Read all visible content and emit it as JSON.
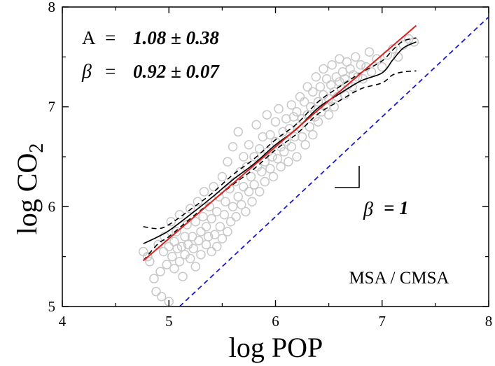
{
  "chart_data": {
    "type": "scatter",
    "title": "",
    "xlabel": "log POP",
    "ylabel_main": "log CO",
    "ylabel_sub": "2",
    "xlim": [
      4,
      8
    ],
    "ylim": [
      5,
      8
    ],
    "xticks": [
      4,
      5,
      6,
      7,
      8
    ],
    "yticks": [
      5,
      6,
      7,
      8
    ],
    "xtick_labels": [
      "4",
      "5",
      "6",
      "7",
      "8"
    ],
    "ytick_labels": [
      "5",
      "6",
      "7",
      "8"
    ],
    "annotations": {
      "a_label": "A",
      "equals": "=",
      "a_value": "1.08 ± 0.38",
      "beta_symbol": "β",
      "beta_value": "0.92 ± 0.07",
      "slope_symbol": "β",
      "slope_value": "= 1",
      "region_label": "MSA / CMSA"
    },
    "colors": {
      "points": "#c8c8c8",
      "fit": "#dd2222",
      "smooth": "#000000",
      "reference": "#1a1acc"
    },
    "fit_line": {
      "intercept": 1.08,
      "slope": 0.92,
      "x_range": [
        4.76,
        7.32
      ]
    },
    "reference_line": {
      "intercept": -0.1,
      "slope": 1.0,
      "x_range": [
        5.1,
        8.0
      ]
    },
    "smooth_mean": {
      "x": [
        4.76,
        4.9,
        5.0,
        5.2,
        5.4,
        5.6,
        5.8,
        6.0,
        6.2,
        6.4,
        6.6,
        6.8,
        7.0,
        7.1,
        7.2,
        7.32
      ],
      "y": [
        5.63,
        5.7,
        5.76,
        5.92,
        6.09,
        6.27,
        6.43,
        6.62,
        6.78,
        6.99,
        7.13,
        7.26,
        7.34,
        7.47,
        7.59,
        7.65
      ]
    },
    "smooth_upper": {
      "x": [
        4.76,
        4.9,
        5.0,
        5.2,
        5.4,
        5.6,
        5.8,
        6.0,
        6.2,
        6.4,
        6.6,
        6.8,
        7.0,
        7.1,
        7.2,
        7.32
      ],
      "y": [
        5.8,
        5.78,
        5.82,
        5.97,
        6.13,
        6.32,
        6.48,
        6.67,
        6.83,
        7.05,
        7.2,
        7.34,
        7.46,
        7.57,
        7.66,
        7.69
      ]
    },
    "smooth_lower": {
      "x": [
        4.76,
        4.9,
        5.0,
        5.2,
        5.4,
        5.6,
        5.8,
        6.0,
        6.2,
        6.4,
        6.6,
        6.8,
        7.0,
        7.1,
        7.2,
        7.32
      ],
      "y": [
        5.46,
        5.63,
        5.7,
        5.88,
        6.05,
        6.22,
        6.38,
        6.57,
        6.73,
        6.93,
        7.06,
        7.18,
        7.24,
        7.32,
        7.35,
        7.36
      ]
    },
    "points": [
      [
        4.76,
        5.55
      ],
      [
        4.8,
        5.5
      ],
      [
        4.82,
        5.45
      ],
      [
        4.86,
        5.28
      ],
      [
        4.88,
        5.15
      ],
      [
        4.9,
        5.62
      ],
      [
        4.92,
        5.35
      ],
      [
        4.93,
        5.1
      ],
      [
        4.95,
        5.55
      ],
      [
        4.96,
        5.7
      ],
      [
        4.98,
        5.42
      ],
      [
        5.0,
        5.6
      ],
      [
        5.0,
        5.05
      ],
      [
        5.02,
        5.85
      ],
      [
        5.03,
        5.5
      ],
      [
        5.05,
        5.65
      ],
      [
        5.05,
        5.38
      ],
      [
        5.07,
        5.75
      ],
      [
        5.08,
        5.58
      ],
      [
        5.1,
        5.45
      ],
      [
        5.1,
        5.92
      ],
      [
        5.12,
        5.6
      ],
      [
        5.13,
        5.3
      ],
      [
        5.15,
        5.7
      ],
      [
        5.15,
        5.52
      ],
      [
        5.17,
        5.82
      ],
      [
        5.18,
        5.62
      ],
      [
        5.2,
        5.48
      ],
      [
        5.2,
        5.98
      ],
      [
        5.22,
        5.7
      ],
      [
        5.23,
        5.58
      ],
      [
        5.25,
        5.85
      ],
      [
        5.25,
        5.4
      ],
      [
        5.27,
        6.05
      ],
      [
        5.28,
        5.66
      ],
      [
        5.3,
        5.75
      ],
      [
        5.3,
        5.52
      ],
      [
        5.32,
        5.9
      ],
      [
        5.33,
        6.15
      ],
      [
        5.35,
        5.62
      ],
      [
        5.35,
        5.8
      ],
      [
        5.37,
        5.7
      ],
      [
        5.38,
        6.0
      ],
      [
        5.4,
        5.55
      ],
      [
        5.4,
        5.88
      ],
      [
        5.42,
        6.2
      ],
      [
        5.43,
        5.72
      ],
      [
        5.45,
        5.95
      ],
      [
        5.45,
        5.6
      ],
      [
        5.47,
        6.1
      ],
      [
        5.48,
        5.8
      ],
      [
        5.5,
        5.68
      ],
      [
        5.5,
        6.3
      ],
      [
        5.52,
        5.92
      ],
      [
        5.53,
        6.05
      ],
      [
        5.55,
        5.75
      ],
      [
        5.55,
        6.45
      ],
      [
        5.57,
        6.18
      ],
      [
        5.58,
        5.85
      ],
      [
        5.6,
        6.0
      ],
      [
        5.6,
        6.6
      ],
      [
        5.62,
        6.25
      ],
      [
        5.63,
        5.9
      ],
      [
        5.65,
        6.1
      ],
      [
        5.65,
        6.75
      ],
      [
        5.67,
        6.35
      ],
      [
        5.68,
        6.02
      ],
      [
        5.7,
        6.2
      ],
      [
        5.7,
        6.5
      ],
      [
        5.72,
        5.95
      ],
      [
        5.73,
        6.4
      ],
      [
        5.75,
        6.15
      ],
      [
        5.75,
        6.62
      ],
      [
        5.77,
        6.3
      ],
      [
        5.78,
        6.05
      ],
      [
        5.8,
        6.5
      ],
      [
        5.8,
        6.22
      ],
      [
        5.82,
        6.82
      ],
      [
        5.83,
        6.4
      ],
      [
        5.85,
        6.15
      ],
      [
        5.85,
        6.58
      ],
      [
        5.87,
        6.35
      ],
      [
        5.88,
        6.7
      ],
      [
        5.9,
        6.45
      ],
      [
        5.9,
        6.25
      ],
      [
        5.92,
        6.92
      ],
      [
        5.93,
        6.55
      ],
      [
        5.95,
        6.38
      ],
      [
        5.95,
        6.72
      ],
      [
        5.97,
        6.5
      ],
      [
        5.98,
        6.3
      ],
      [
        6.0,
        6.65
      ],
      [
        6.0,
        6.85
      ],
      [
        6.02,
        6.48
      ],
      [
        6.03,
        6.98
      ],
      [
        6.05,
        6.6
      ],
      [
        6.05,
        6.4
      ],
      [
        6.07,
        6.75
      ],
      [
        6.08,
        6.55
      ],
      [
        6.1,
        6.88
      ],
      [
        6.1,
        6.65
      ],
      [
        6.12,
        6.45
      ],
      [
        6.13,
        6.78
      ],
      [
        6.15,
        7.02
      ],
      [
        6.15,
        6.6
      ],
      [
        6.17,
        6.9
      ],
      [
        6.18,
        6.7
      ],
      [
        6.2,
        6.5
      ],
      [
        6.2,
        6.95
      ],
      [
        6.22,
        6.8
      ],
      [
        6.23,
        7.1
      ],
      [
        6.25,
        6.7
      ],
      [
        6.25,
        6.88
      ],
      [
        6.27,
        7.05
      ],
      [
        6.28,
        6.62
      ],
      [
        6.3,
        6.92
      ],
      [
        6.3,
        7.2
      ],
      [
        6.32,
        6.8
      ],
      [
        6.33,
        7.0
      ],
      [
        6.35,
        6.72
      ],
      [
        6.35,
        7.15
      ],
      [
        6.37,
        6.9
      ],
      [
        6.38,
        7.3
      ],
      [
        6.4,
        7.05
      ],
      [
        6.4,
        6.85
      ],
      [
        6.42,
        7.2
      ],
      [
        6.43,
        6.95
      ],
      [
        6.45,
        7.12
      ],
      [
        6.45,
        7.38
      ],
      [
        6.47,
        7.0
      ],
      [
        6.48,
        7.28
      ],
      [
        6.5,
        7.08
      ],
      [
        6.5,
        6.92
      ],
      [
        6.52,
        7.22
      ],
      [
        6.53,
        7.42
      ],
      [
        6.55,
        7.15
      ],
      [
        6.55,
        7.0
      ],
      [
        6.57,
        7.3
      ],
      [
        6.58,
        7.1
      ],
      [
        6.6,
        7.25
      ],
      [
        6.6,
        7.48
      ],
      [
        6.62,
        7.18
      ],
      [
        6.63,
        7.35
      ],
      [
        6.65,
        7.12
      ],
      [
        6.65,
        7.28
      ],
      [
        6.67,
        7.45
      ],
      [
        6.68,
        7.22
      ],
      [
        6.7,
        7.38
      ],
      [
        6.72,
        7.2
      ],
      [
        6.73,
        7.32
      ],
      [
        6.75,
        7.5
      ],
      [
        6.77,
        7.3
      ],
      [
        6.8,
        7.42
      ],
      [
        6.82,
        7.28
      ],
      [
        6.85,
        7.4
      ],
      [
        6.88,
        7.55
      ],
      [
        6.9,
        7.35
      ],
      [
        6.95,
        7.48
      ],
      [
        7.0,
        7.4
      ],
      [
        7.05,
        7.52
      ],
      [
        7.1,
        7.58
      ],
      [
        7.15,
        7.5
      ],
      [
        7.2,
        7.62
      ],
      [
        7.25,
        7.68
      ],
      [
        7.3,
        7.65
      ]
    ]
  }
}
